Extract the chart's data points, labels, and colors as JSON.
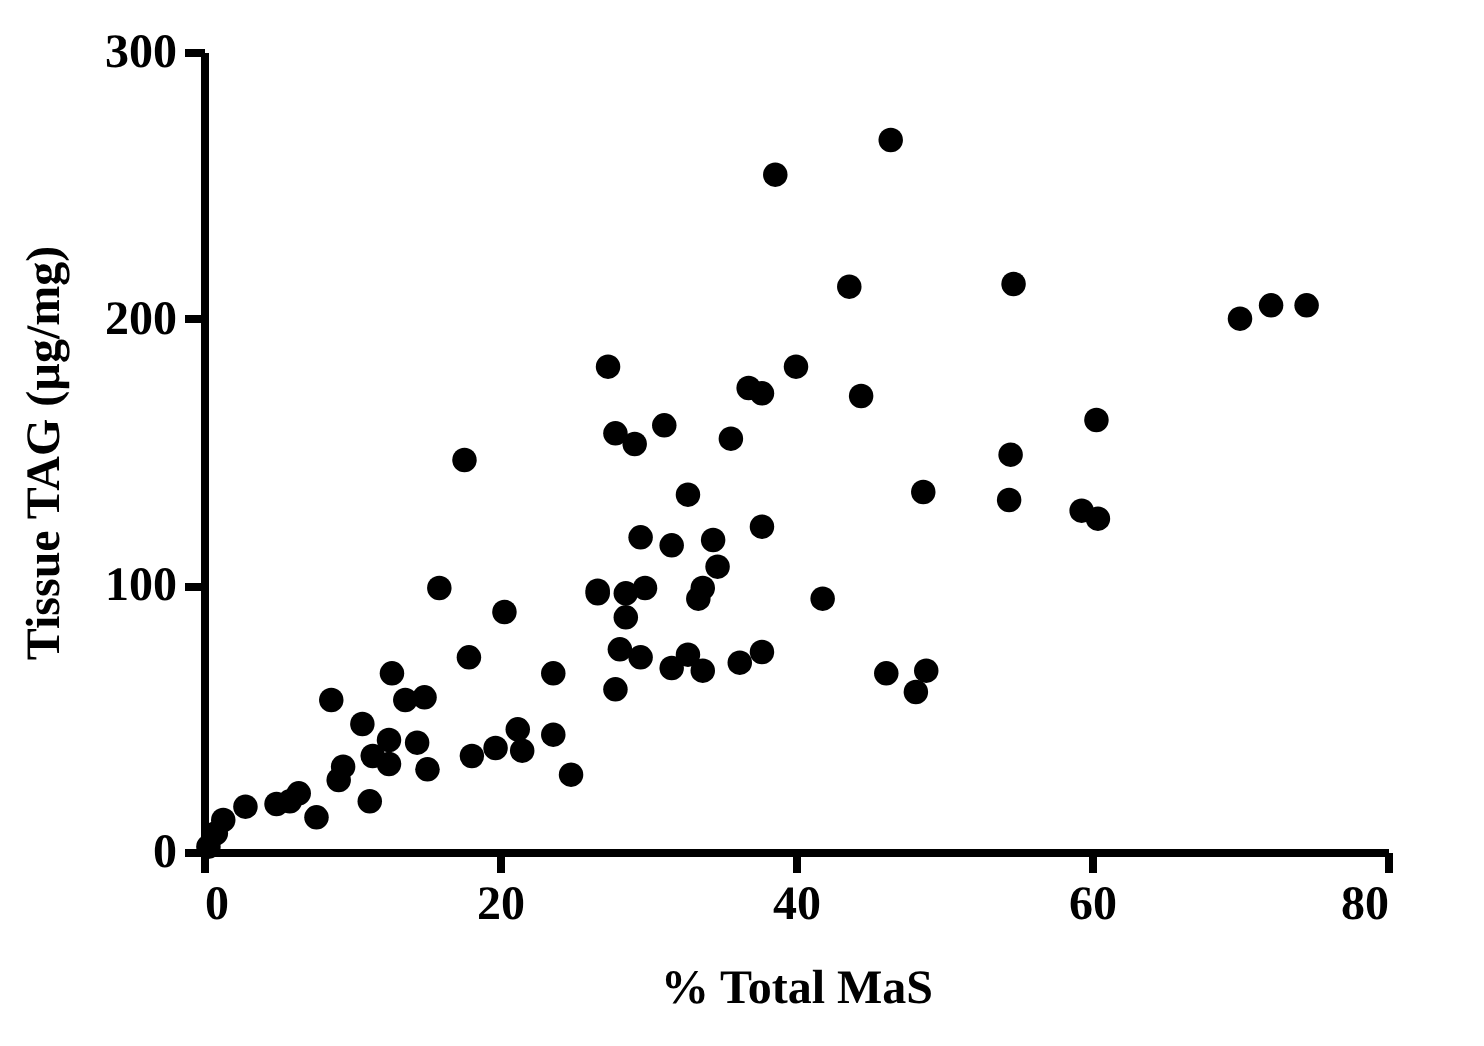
{
  "chart_data": {
    "type": "scatter",
    "xlabel": "% Total MaS",
    "ylabel": "Tissue TAG (µg/mg)",
    "marker": "circle",
    "grid": false,
    "xlim": [
      0,
      80
    ],
    "xticks": [
      0,
      20,
      40,
      60,
      80
    ],
    "ylim": [
      0,
      300
    ],
    "yticks": [
      0,
      100,
      200,
      300
    ],
    "series": [
      {
        "color": "#000000",
        "x": [
          0.3,
          0.8,
          1.3,
          2.8,
          4.9,
          5.8,
          6.4,
          7.6,
          8.6,
          9.1,
          9.4,
          10.7,
          11.2,
          11.4,
          12.5,
          12.5,
          12.7,
          13.6,
          14.4,
          14.9,
          15.1,
          15.9,
          17.6,
          17.9,
          18.1,
          19.7,
          20.3,
          21.2,
          21.5,
          23.6,
          23.6,
          24.8,
          26.6,
          26.6,
          27.3,
          27.8,
          27.8,
          28.1,
          28.5,
          28.5,
          29.1,
          29.5,
          29.5,
          29.8,
          31.1,
          31.6,
          31.6,
          32.7,
          32.7,
          33.4,
          33.7,
          33.7,
          34.4,
          34.7,
          35.6,
          36.2,
          36.8,
          37.7,
          37.7,
          37.7,
          38.6,
          40,
          41.8,
          43.6,
          44.4,
          46.1,
          46.4,
          48.1,
          48.6,
          48.8,
          54.4,
          54.5,
          54.7,
          59.3,
          60.3,
          60.4,
          70,
          72.1,
          74.5
        ],
        "values": [
          2,
          7,
          12,
          17,
          18,
          19,
          22,
          13,
          57,
          27,
          32,
          48,
          19,
          36,
          42,
          33,
          67,
          57,
          41,
          58,
          31,
          99,
          147,
          73,
          36,
          39,
          90,
          46,
          38,
          44,
          67,
          29,
          98,
          97,
          182,
          157,
          61,
          76,
          97,
          88,
          153,
          118,
          73,
          99,
          160,
          115,
          69,
          134,
          74,
          95,
          99,
          68,
          117,
          107,
          155,
          71,
          174,
          172,
          122,
          75,
          254,
          182,
          95,
          212,
          171,
          67,
          267,
          60,
          135,
          68,
          132,
          149,
          213,
          128,
          162,
          125,
          200,
          205,
          205
        ]
      }
    ]
  }
}
